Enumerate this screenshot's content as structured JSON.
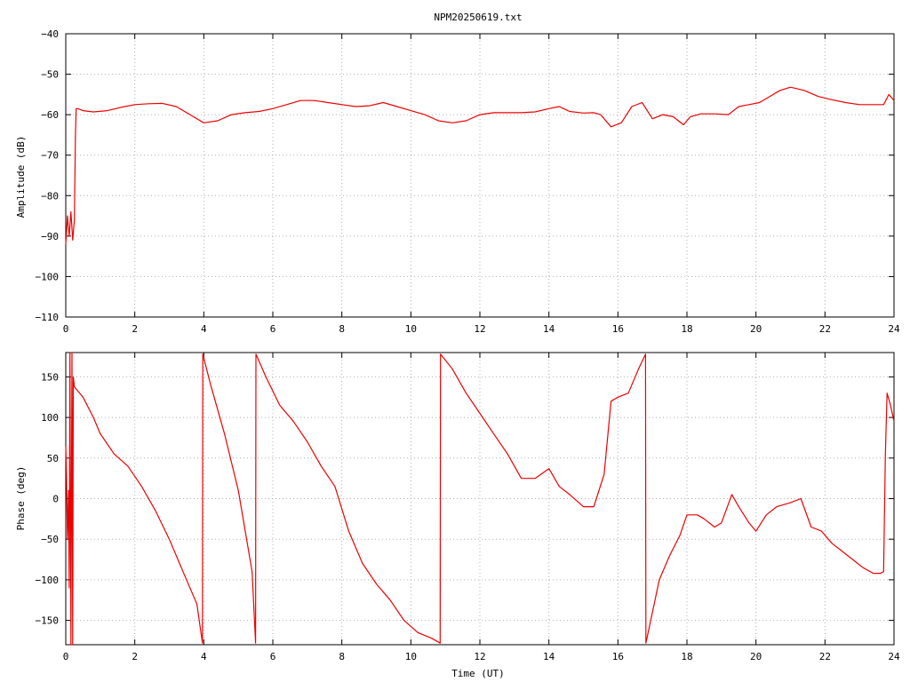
{
  "chart_data": [
    {
      "type": "line",
      "title": "NPM20250619.txt",
      "xlabel": "",
      "ylabel": "Amplitude (dB)",
      "xlim": [
        0,
        24
      ],
      "ylim": [
        -110,
        -40
      ],
      "xticks": [
        0,
        2,
        4,
        6,
        8,
        10,
        12,
        14,
        16,
        18,
        20,
        22,
        24
      ],
      "yticks": [
        -110,
        -100,
        -90,
        -80,
        -70,
        -60,
        -50,
        -40
      ],
      "ytick_labels": [
        "−110",
        "−100",
        "−90",
        "−80",
        "−70",
        "−60",
        "−50",
        "−40"
      ],
      "grid": true,
      "series": [
        {
          "color": "#ee0000",
          "x": [
            0,
            0.05,
            0.1,
            0.15,
            0.2,
            0.25,
            0.28,
            0.3,
            0.35,
            0.5,
            0.8,
            1.2,
            1.6,
            2.0,
            2.4,
            2.8,
            3.2,
            3.6,
            4.0,
            4.4,
            4.8,
            5.2,
            5.6,
            6.0,
            6.4,
            6.8,
            7.2,
            7.6,
            8.0,
            8.4,
            8.8,
            9.2,
            9.6,
            10.0,
            10.4,
            10.8,
            11.2,
            11.6,
            12.0,
            12.4,
            12.8,
            13.2,
            13.6,
            14.0,
            14.3,
            14.6,
            15.0,
            15.3,
            15.5,
            15.8,
            16.1,
            16.4,
            16.7,
            17.0,
            17.3,
            17.6,
            17.9,
            18.1,
            18.4,
            18.8,
            19.2,
            19.5,
            19.8,
            20.1,
            20.4,
            20.7,
            21.0,
            21.4,
            21.8,
            22.2,
            22.6,
            23.0,
            23.4,
            23.7,
            23.85,
            23.95,
            24.0
          ],
          "y": [
            -92,
            -85,
            -90,
            -84,
            -91,
            -86,
            -65,
            -58.5,
            -58.5,
            -59,
            -59.3,
            -59,
            -58.2,
            -57.5,
            -57.3,
            -57.2,
            -58,
            -60,
            -62,
            -61.5,
            -60,
            -59.5,
            -59.2,
            -58.5,
            -57.5,
            -56.5,
            -56.5,
            -57,
            -57.5,
            -58,
            -57.8,
            -57,
            -58,
            -59,
            -60,
            -61.5,
            -62,
            -61.5,
            -60,
            -59.5,
            -59.5,
            -59.5,
            -59.3,
            -58.5,
            -58,
            -59.2,
            -59.6,
            -59.5,
            -60,
            -63,
            -62,
            -58,
            -57,
            -61,
            -60,
            -60.5,
            -62.5,
            -60.5,
            -59.8,
            -59.8,
            -60,
            -58,
            -57.5,
            -57,
            -55.5,
            -54,
            -53.2,
            -54,
            -55.5,
            -56.3,
            -57,
            -57.5,
            -57.5,
            -57.5,
            -55,
            -56,
            -56.5
          ]
        }
      ]
    },
    {
      "type": "line",
      "title": "",
      "xlabel": "Time (UT)",
      "ylabel": "Phase (deg)",
      "xlim": [
        0,
        24
      ],
      "ylim": [
        -180,
        180
      ],
      "xticks": [
        0,
        2,
        4,
        6,
        8,
        10,
        12,
        14,
        16,
        18,
        20,
        22,
        24
      ],
      "yticks": [
        -150,
        -100,
        -50,
        0,
        50,
        100,
        150
      ],
      "ytick_labels": [
        "−150",
        "−100",
        "−50",
        "0",
        "50",
        "100",
        "150"
      ],
      "grid": true,
      "series": [
        {
          "color": "#ee0000",
          "x": [
            0,
            0.02,
            0.05,
            0.08,
            0.1,
            0.12,
            0.15,
            0.18,
            0.2,
            0.22,
            0.25,
            0.3,
            0.5,
            0.8,
            1.0,
            1.4,
            1.8,
            2.2,
            2.6,
            3.0,
            3.4,
            3.8,
            3.96,
            3.97,
            4.2,
            4.6,
            5.0,
            5.4,
            5.5,
            5.51,
            5.8,
            6.2,
            6.6,
            7.0,
            7.4,
            7.8,
            8.2,
            8.6,
            9.0,
            9.4,
            9.8,
            10.2,
            10.6,
            10.85,
            10.86,
            11.2,
            11.6,
            12.0,
            12.4,
            12.8,
            13.2,
            13.6,
            14.0,
            14.3,
            14.6,
            15.0,
            15.3,
            15.6,
            15.8,
            16.0,
            16.3,
            16.6,
            16.8,
            16.81,
            17.0,
            17.2,
            17.5,
            17.8,
            18.0,
            18.3,
            18.5,
            18.8,
            19.0,
            19.3,
            19.5,
            19.8,
            20.0,
            20.3,
            20.6,
            21.0,
            21.3,
            21.6,
            21.9,
            22.2,
            22.5,
            22.8,
            23.1,
            23.4,
            23.6,
            23.7,
            23.75,
            23.8,
            23.9,
            24.0
          ],
          "y": [
            65,
            30,
            -50,
            10,
            -110,
            180,
            -180,
            180,
            -180,
            150,
            138,
            135,
            125,
            100,
            80,
            55,
            40,
            15,
            -15,
            -50,
            -90,
            -130,
            -178,
            178,
            140,
            80,
            10,
            -90,
            -178,
            178,
            150,
            115,
            95,
            70,
            40,
            15,
            -40,
            -80,
            -105,
            -125,
            -150,
            -165,
            -172,
            -178,
            178,
            160,
            130,
            105,
            80,
            55,
            25,
            25,
            37,
            15,
            5,
            -10,
            -10,
            30,
            120,
            125,
            130,
            160,
            178,
            -178,
            -140,
            -100,
            -70,
            -45,
            -20,
            -20,
            -25,
            -35,
            -30,
            5,
            -10,
            -30,
            -40,
            -20,
            -10,
            -5,
            0,
            -35,
            -40,
            -55,
            -65,
            -75,
            -85,
            -92,
            -92,
            -90,
            55,
            130,
            115,
            95
          ]
        }
      ]
    }
  ]
}
